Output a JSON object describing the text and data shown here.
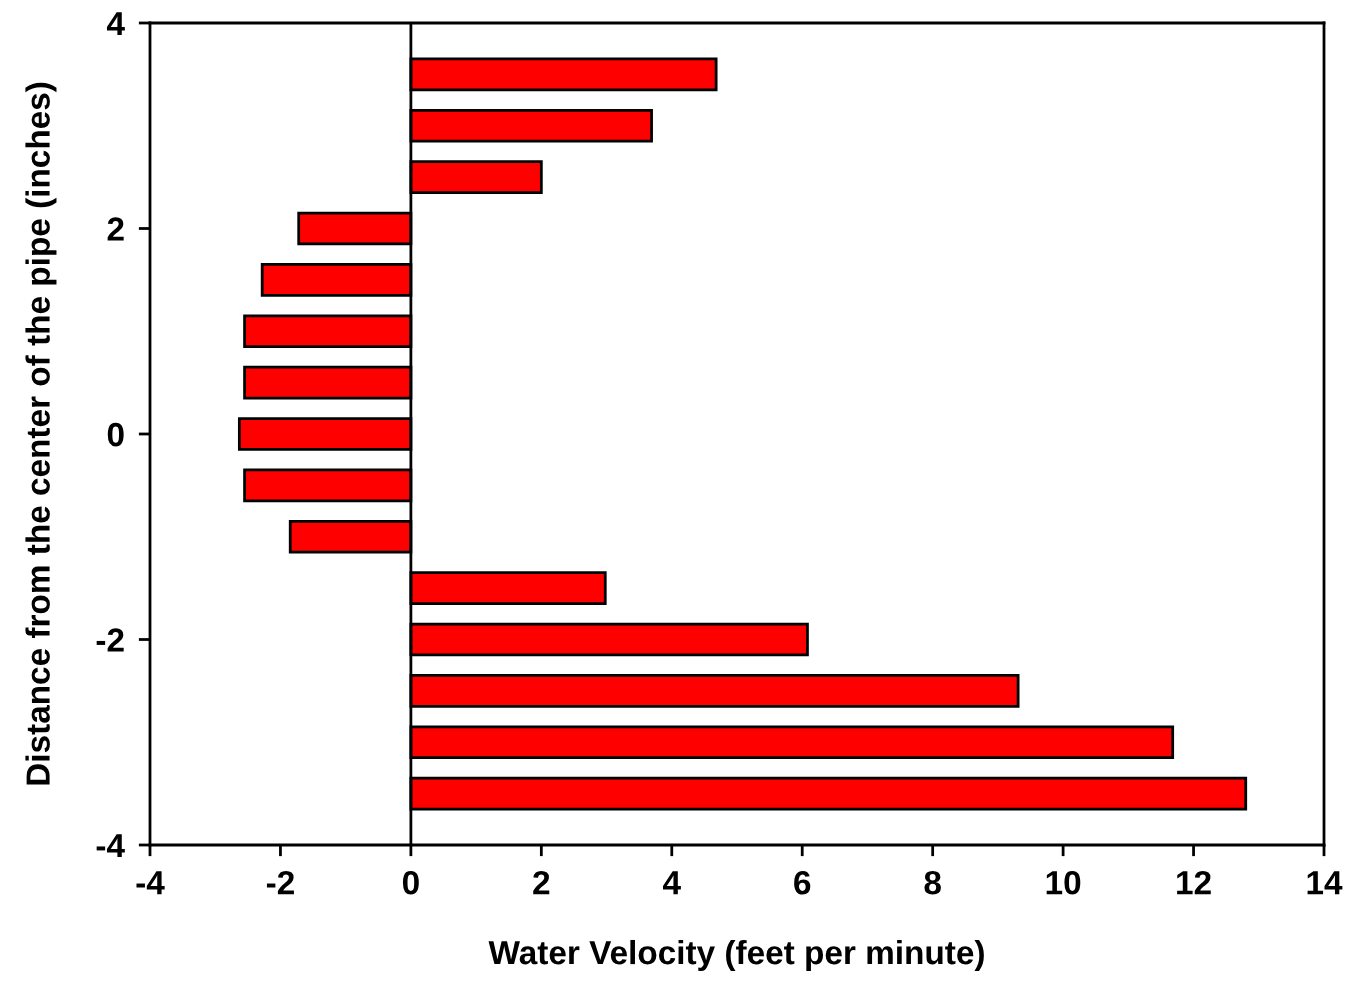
{
  "chart_data": {
    "type": "bar",
    "orientation": "horizontal",
    "xlabel": "Water Velocity (feet per minute)",
    "ylabel": "Distance from the center of the pipe (inches)",
    "x": [
      3.5,
      3.0,
      2.5,
      2.0,
      1.5,
      1.0,
      0.5,
      0.0,
      -0.5,
      -1.0,
      -1.5,
      -2.0,
      -2.5,
      -3.0,
      -3.5
    ],
    "values": [
      4.68,
      3.69,
      2.0,
      -1.72,
      -2.28,
      -2.55,
      -2.55,
      -2.63,
      -2.55,
      -1.85,
      2.98,
      6.08,
      9.31,
      11.68,
      12.8
    ],
    "color": "#ff0000",
    "xlim": [
      -4,
      14
    ],
    "xticks": [
      -4,
      -2,
      0,
      2,
      4,
      6,
      8,
      10,
      12,
      14
    ],
    "ylim": [
      -4,
      4
    ],
    "yticks": [
      -4,
      -2,
      0,
      2,
      4
    ],
    "ref_lines": [
      {
        "axis": "x",
        "value": 0,
        "color": "#000000"
      }
    ],
    "grid": false
  }
}
